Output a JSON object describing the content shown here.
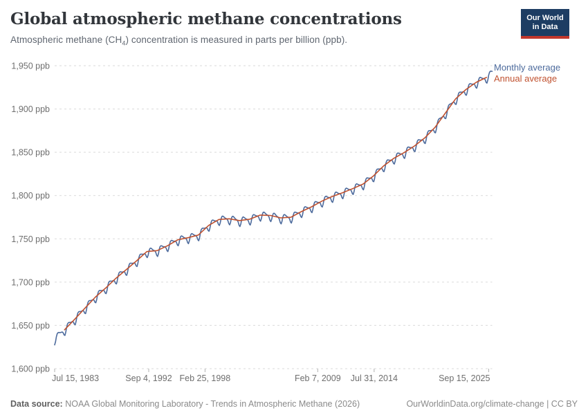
{
  "header": {
    "title": "Global atmospheric methane concentrations",
    "subtitle_prefix": "Atmospheric methane (CH",
    "subtitle_sub": "4",
    "subtitle_suffix": ") concentration is measured in parts per billion (ppb).",
    "logo": {
      "line1": "Our World",
      "line2": "in Data"
    }
  },
  "footer": {
    "source_label": "Data source:",
    "source_text": " NOAA Global Monitoring Laboratory - Trends in Atmospheric Methane (2026)",
    "link_text": "OurWorldinData.org/climate-change | CC BY"
  },
  "chart_data": {
    "type": "line",
    "title": "Global atmospheric methane concentrations",
    "unit": "ppb",
    "ylim": [
      1600,
      1950
    ],
    "grid": "dashed-horizontal",
    "yticks": [
      {
        "value": 1600,
        "label": "1,600 ppb"
      },
      {
        "value": 1650,
        "label": "1,650 ppb"
      },
      {
        "value": 1700,
        "label": "1,700 ppb"
      },
      {
        "value": 1750,
        "label": "1,750 ppb"
      },
      {
        "value": 1800,
        "label": "1,800 ppb"
      },
      {
        "value": 1850,
        "label": "1,850 ppb"
      },
      {
        "value": 1900,
        "label": "1,900 ppb"
      },
      {
        "value": 1950,
        "label": "1,950 ppb"
      }
    ],
    "xticks": [
      {
        "t": 1983.54,
        "label": "Jul 15, 1983",
        "anchor": "start"
      },
      {
        "t": 1992.68,
        "label": "Sep 4, 1992",
        "anchor": "middle"
      },
      {
        "t": 1998.15,
        "label": "Feb 25, 1998",
        "anchor": "middle"
      },
      {
        "t": 2009.1,
        "label": "Feb 7, 2009",
        "anchor": "middle"
      },
      {
        "t": 2014.58,
        "label": "Jul 31, 2014",
        "anchor": "middle"
      },
      {
        "t": 2025.71,
        "label": "Sep 15, 2025",
        "anchor": "end"
      }
    ],
    "x_range_years": [
      1983.54,
      2026.05
    ],
    "legend": {
      "position": "right-of-line-end",
      "entries": [
        {
          "label": "Monthly average",
          "color": "#4C6A9C"
        },
        {
          "label": "Annual average",
          "color": "#C0512F"
        }
      ]
    },
    "series": [
      {
        "name": "Monthly average",
        "color": "#4C6A9C",
        "derivation": "annual_base_plus_seasonal_cycle",
        "start_month": "1983-07",
        "end_month": "2026-01",
        "seasonal_offsets_ppb": [
          1.8,
          0.9,
          0.4,
          -0.3,
          -2.2,
          -5.5,
          -7.0,
          -4.2,
          0.6,
          3.2,
          3.6,
          2.8
        ],
        "edge_anchors": {
          "1983": 1634.0,
          "2026": 1946.0
        }
      },
      {
        "name": "Annual average",
        "color": "#C0512F",
        "years": [
          1984,
          1985,
          1986,
          1987,
          1988,
          1989,
          1990,
          1991,
          1992,
          1993,
          1994,
          1995,
          1996,
          1997,
          1998,
          1999,
          2000,
          2001,
          2002,
          2003,
          2004,
          2005,
          2006,
          2007,
          2008,
          2009,
          2010,
          2011,
          2012,
          2013,
          2014,
          2015,
          2016,
          2017,
          2018,
          2019,
          2020,
          2021,
          2022,
          2023,
          2024,
          2025
        ],
        "values": [
          1644.9,
          1657.3,
          1670.1,
          1682.7,
          1693.2,
          1704.5,
          1714.4,
          1724.6,
          1735.3,
          1736.4,
          1742.0,
          1748.9,
          1751.3,
          1754.4,
          1765.5,
          1772.4,
          1773.2,
          1771.1,
          1772.7,
          1777.4,
          1777.0,
          1774.2,
          1774.9,
          1781.4,
          1787.0,
          1793.5,
          1798.9,
          1803.1,
          1808.0,
          1813.3,
          1822.5,
          1834.2,
          1843.1,
          1849.6,
          1857.3,
          1866.6,
          1878.8,
          1895.3,
          1911.8,
          1922.5,
          1930.8,
          1936.5
        ]
      }
    ],
    "style": {
      "gridline_color": "#dadada",
      "axis_text_color": "#6e6e6e",
      "tick_color": "#b0b0b0",
      "line_width": 1.6
    }
  }
}
